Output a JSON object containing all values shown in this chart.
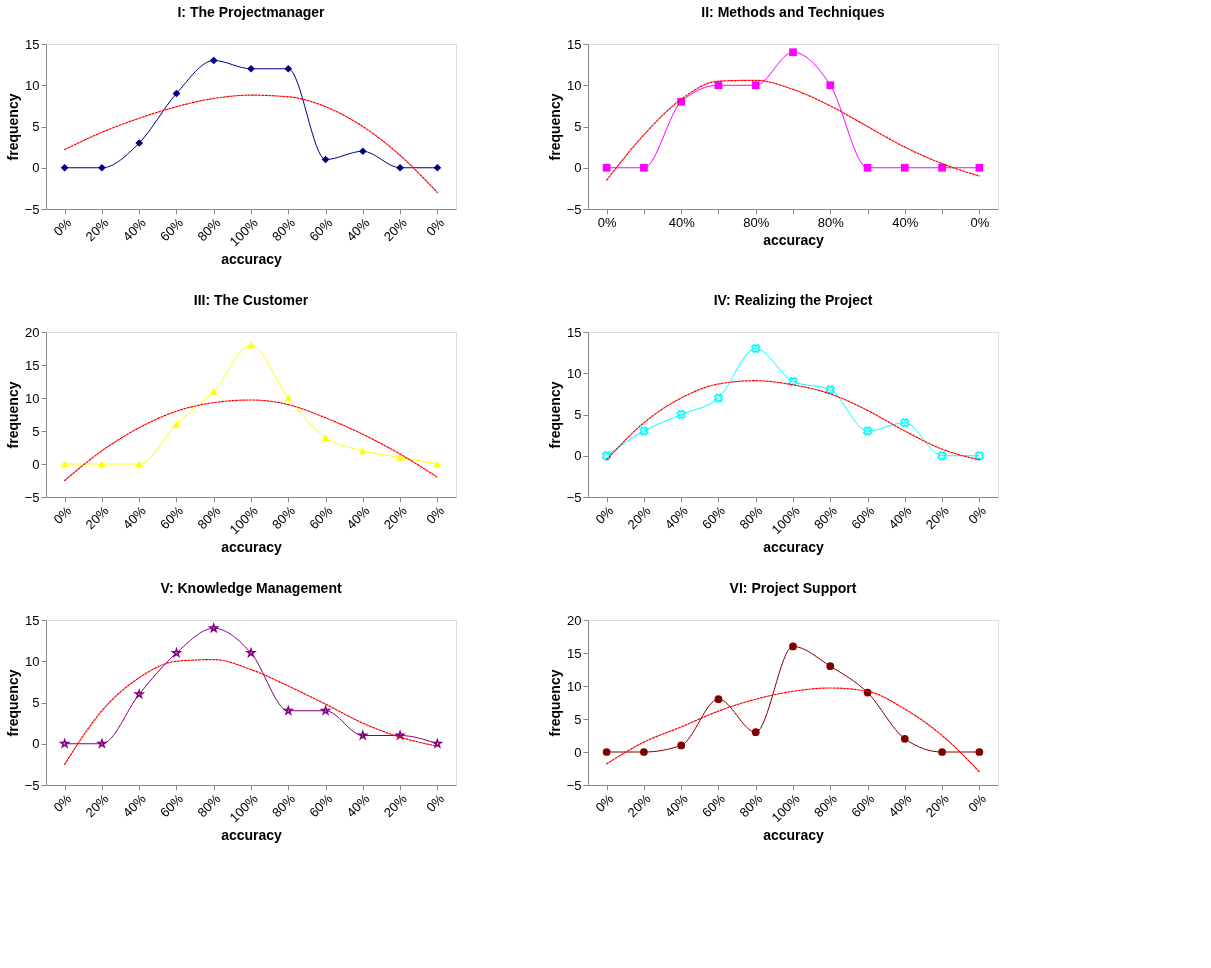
{
  "chart_data": [
    {
      "type": "line",
      "title": "I: The Projectmanager",
      "xlabel": "accuracy",
      "ylabel": "frequency",
      "categories": [
        "0%",
        "20%",
        "40%",
        "60%",
        "80%",
        "100%",
        "80%",
        "60%",
        "40%",
        "20%",
        "0%"
      ],
      "ylim": [
        -5,
        15
      ],
      "yticks": [
        -5,
        0,
        5,
        10,
        15
      ],
      "series": [
        {
          "color": "#000080",
          "marker": "diamond",
          "values": [
            0,
            0,
            3,
            9,
            13,
            12,
            12,
            1,
            2,
            0,
            0
          ]
        },
        {
          "type": "line",
          "color": "#ff0000",
          "marker": "none",
          "line_style": "dotted",
          "values": [
            2.2,
            4.3,
            6,
            7.4,
            8.4,
            8.8,
            8.6,
            7.4,
            5,
            1.5,
            -3
          ]
        }
      ]
    },
    {
      "type": "line",
      "title": "II: Methods and Techniques",
      "xlabel": "accuracy",
      "ylabel": "frequency",
      "categories": [
        "0%",
        null,
        "40%",
        null,
        "80%",
        null,
        "80%",
        null,
        "40%",
        null,
        "0%"
      ],
      "ylim": [
        -5,
        15
      ],
      "yticks": [
        -5,
        0,
        5,
        10,
        15
      ],
      "series": [
        {
          "color": "#ff00ff",
          "marker": "square",
          "values": [
            0,
            0,
            8,
            10,
            10,
            14,
            10,
            0,
            0,
            0,
            0
          ]
        },
        {
          "type": "line",
          "color": "#ff0000",
          "marker": "none",
          "line_style": "dotted",
          "values": [
            -1.5,
            4,
            8.3,
            10.5,
            10.6,
            9.5,
            7.5,
            5,
            2.5,
            0.5,
            -1
          ]
        }
      ]
    },
    {
      "type": "line",
      "title": "III: The Customer",
      "xlabel": "accuracy",
      "ylabel": "frequency",
      "categories": [
        "0%",
        "20%",
        "40%",
        "60%",
        "80%",
        "100%",
        "80%",
        "60%",
        "40%",
        "20%",
        "0%"
      ],
      "ylim": [
        -5,
        20
      ],
      "yticks": [
        -5,
        0,
        5,
        10,
        15,
        20
      ],
      "series": [
        {
          "color": "#ffff00",
          "marker": "triangle",
          "values": [
            0,
            0,
            0,
            6,
            11,
            18,
            10,
            4,
            2,
            1,
            0
          ]
        },
        {
          "type": "line",
          "color": "#ff0000",
          "marker": "none",
          "line_style": "dotted",
          "values": [
            -2.5,
            2,
            5.5,
            8,
            9.3,
            9.7,
            9,
            7,
            4.5,
            1.5,
            -2
          ]
        }
      ]
    },
    {
      "type": "line",
      "title": "IV: Realizing the Project",
      "xlabel": "accuracy",
      "ylabel": "frequency",
      "categories": [
        "0%",
        "20%",
        "40%",
        "60%",
        "80%",
        "100%",
        "80%",
        "60%",
        "40%",
        "20%",
        "0%"
      ],
      "ylim": [
        -5,
        15
      ],
      "yticks": [
        -5,
        0,
        5,
        10,
        15
      ],
      "series": [
        {
          "color": "#00ffff",
          "marker": "cross",
          "values": [
            0,
            3,
            5,
            7,
            13,
            9,
            8,
            3,
            4,
            0,
            0
          ]
        },
        {
          "type": "line",
          "color": "#ff0000",
          "marker": "none",
          "line_style": "dotted",
          "values": [
            -0.5,
            4,
            7,
            8.7,
            9.1,
            8.6,
            7.5,
            5.5,
            3,
            0.8,
            -0.5
          ]
        }
      ]
    },
    {
      "type": "line",
      "title": "V: Knowledge Management",
      "xlabel": "accuracy",
      "ylabel": "frequency",
      "categories": [
        "0%",
        "20%",
        "40%",
        "60%",
        "80%",
        "100%",
        "80%",
        "60%",
        "40%",
        "20%",
        "0%"
      ],
      "ylim": [
        -5,
        15
      ],
      "yticks": [
        -5,
        0,
        5,
        10,
        15
      ],
      "series": [
        {
          "color": "#800080",
          "marker": "star",
          "values": [
            0,
            0,
            6,
            11,
            14,
            11,
            4,
            4,
            1,
            1,
            0
          ]
        },
        {
          "type": "line",
          "color": "#ff0000",
          "marker": "none",
          "line_style": "dotted",
          "values": [
            -2.5,
            4,
            8,
            10,
            10.2,
            9,
            7,
            4.8,
            2.5,
            0.8,
            -0.3
          ]
        }
      ]
    },
    {
      "type": "line",
      "title": "VI: Project Support",
      "xlabel": "accuracy",
      "ylabel": "frequency",
      "categories": [
        "0%",
        "20%",
        "40%",
        "60%",
        "80%",
        "100%",
        "80%",
        "60%",
        "40%",
        "20%",
        "0%"
      ],
      "ylim": [
        -5,
        20
      ],
      "yticks": [
        -5,
        0,
        5,
        10,
        15,
        20
      ],
      "series": [
        {
          "color": "#800000",
          "marker": "circle",
          "values": [
            0,
            0,
            1,
            8,
            3,
            16,
            13,
            9,
            2,
            0,
            0
          ]
        },
        {
          "type": "line",
          "color": "#ff0000",
          "marker": "none",
          "line_style": "dotted",
          "values": [
            -1.8,
            1.5,
            3.8,
            6.2,
            8,
            9.2,
            9.7,
            9.2,
            6.5,
            2.5,
            -3
          ]
        }
      ]
    }
  ]
}
